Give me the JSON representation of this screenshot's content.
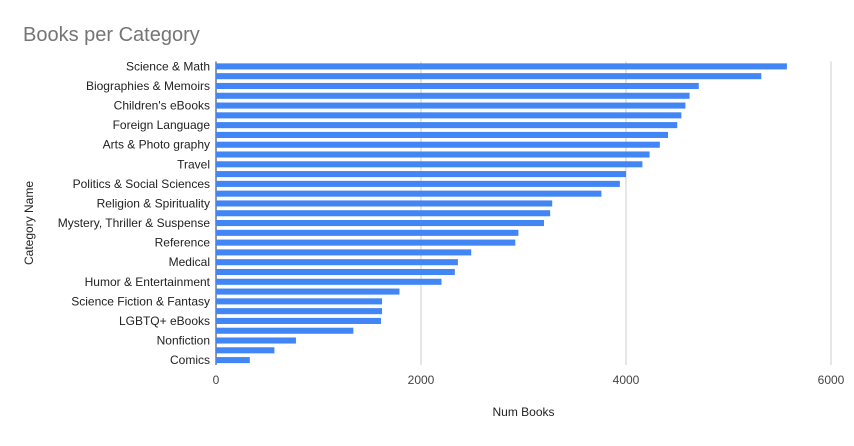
{
  "chart_data": {
    "type": "bar",
    "orientation": "horizontal",
    "title": "Books per Category",
    "xlabel": "Num Books",
    "ylabel": "Category Name",
    "xlim": [
      0,
      6000
    ],
    "xticks": [
      "0",
      "2000",
      "4000",
      "6000"
    ],
    "grid": true,
    "bar_color": "#4285f4",
    "categories": [
      "Science & Math",
      "",
      "Biographies & Memoirs",
      "",
      "Children's eBooks",
      "",
      "Foreign Language",
      "",
      "Arts & Photo graphy",
      "",
      "Travel",
      "",
      "Politics & Social Sciences",
      "",
      "Religion & Spirituality",
      "",
      "Mystery, Thriller & Suspense",
      "",
      "Reference",
      "",
      "Medical",
      "",
      "Humor & Entertainment",
      "",
      "Science Fiction & Fantasy",
      "",
      "LGBTQ+ eBooks",
      "",
      "Nonfiction",
      "",
      "Comics"
    ],
    "values": [
      5570,
      5320,
      4710,
      4620,
      4580,
      4540,
      4500,
      4410,
      4330,
      4230,
      4160,
      4000,
      3940,
      3760,
      3280,
      3260,
      3200,
      2950,
      2920,
      2490,
      2360,
      2330,
      2200,
      1790,
      1620,
      1620,
      1610,
      1340,
      780,
      570,
      330
    ]
  }
}
